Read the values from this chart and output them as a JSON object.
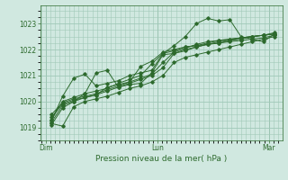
{
  "background_color": "#d0e8e0",
  "grid_color": "#a0c8b8",
  "line_color": "#2d6a2d",
  "title": "Pression niveau de la mer( hPa )",
  "xlabel_day_labels": [
    "Dim",
    "Lun",
    "Mar"
  ],
  "xlabel_day_positions": [
    0.0,
    1.0,
    2.0
  ],
  "ylim": [
    1018.5,
    1023.7
  ],
  "yticks": [
    1019,
    1020,
    1021,
    1022,
    1023
  ],
  "xlim": [
    -0.05,
    2.12
  ],
  "series": [
    [
      0.05,
      1019.15,
      0.15,
      1019.05,
      0.25,
      1019.8,
      0.35,
      1020.0,
      0.45,
      1020.1,
      0.55,
      1020.2,
      0.65,
      1020.35,
      0.75,
      1020.5,
      0.85,
      1020.6,
      0.95,
      1020.75,
      1.05,
      1021.0,
      1.15,
      1021.5,
      1.25,
      1021.7,
      1.35,
      1021.8,
      1.45,
      1021.9,
      1.55,
      1022.0,
      1.65,
      1022.1,
      1.75,
      1022.2,
      1.85,
      1022.3,
      1.95,
      1022.4,
      2.05,
      1022.5
    ],
    [
      0.05,
      1019.4,
      0.15,
      1019.9,
      0.25,
      1020.05,
      0.35,
      1020.15,
      0.45,
      1020.25,
      0.55,
      1020.4,
      0.65,
      1020.55,
      0.75,
      1020.7,
      0.85,
      1020.85,
      0.95,
      1021.0,
      1.05,
      1021.3,
      1.15,
      1021.85,
      1.25,
      1022.0,
      1.35,
      1022.1,
      1.45,
      1022.2,
      1.55,
      1022.25,
      1.65,
      1022.3,
      1.75,
      1022.35,
      1.85,
      1022.4,
      1.95,
      1022.45,
      2.05,
      1022.55
    ],
    [
      0.05,
      1019.5,
      0.15,
      1019.95,
      0.25,
      1020.1,
      0.35,
      1020.2,
      0.45,
      1020.3,
      0.55,
      1020.45,
      0.65,
      1020.6,
      0.75,
      1020.75,
      0.85,
      1020.9,
      0.95,
      1021.05,
      1.05,
      1021.5,
      1.15,
      1021.9,
      1.25,
      1022.05,
      1.35,
      1022.2,
      1.45,
      1022.3,
      1.55,
      1022.35,
      1.65,
      1022.4,
      1.75,
      1022.45,
      1.85,
      1022.5,
      1.95,
      1022.55,
      2.05,
      1022.6
    ],
    [
      0.05,
      1019.3,
      0.15,
      1020.0,
      0.25,
      1020.15,
      0.35,
      1020.3,
      0.45,
      1021.1,
      0.55,
      1021.2,
      0.65,
      1020.55,
      0.75,
      1020.65,
      0.85,
      1020.7,
      0.95,
      1021.1,
      1.05,
      1021.8,
      1.15,
      1021.85,
      1.25,
      1021.95,
      1.35,
      1022.1,
      1.45,
      1022.2,
      1.55,
      1022.25,
      1.65,
      1022.35,
      1.75,
      1022.45,
      1.85,
      1022.5,
      1.95,
      1022.55,
      2.05,
      1022.6
    ],
    [
      0.05,
      1019.25,
      0.15,
      1020.2,
      0.25,
      1020.9,
      0.35,
      1021.05,
      0.45,
      1020.6,
      0.55,
      1020.7,
      0.65,
      1020.8,
      0.75,
      1021.0,
      0.85,
      1021.1,
      0.95,
      1021.2,
      1.05,
      1021.85,
      1.15,
      1021.95,
      1.25,
      1022.1,
      1.35,
      1022.15,
      1.45,
      1022.2,
      1.55,
      1022.3,
      1.65,
      1022.35,
      1.75,
      1022.4,
      1.85,
      1022.5,
      1.95,
      1022.55,
      2.05,
      1022.6
    ],
    [
      0.05,
      1019.2,
      0.15,
      1019.85,
      0.25,
      1020.0,
      0.35,
      1020.15,
      0.45,
      1020.25,
      0.55,
      1020.55,
      0.65,
      1020.65,
      0.75,
      1020.75,
      0.85,
      1021.35,
      0.95,
      1021.55,
      1.05,
      1021.9,
      1.15,
      1022.0,
      1.25,
      1022.1,
      1.35,
      1022.15,
      1.45,
      1022.25,
      1.55,
      1022.35,
      1.65,
      1022.4,
      1.75,
      1022.45,
      1.85,
      1022.5,
      1.95,
      1022.55,
      2.05,
      1022.65
    ],
    [
      0.05,
      1019.1,
      0.15,
      1019.75,
      0.25,
      1020.0,
      0.35,
      1020.3,
      0.45,
      1020.4,
      0.55,
      1020.5,
      0.65,
      1020.7,
      0.75,
      1020.85,
      0.85,
      1021.0,
      0.95,
      1021.45,
      1.05,
      1021.85,
      1.15,
      1022.15,
      1.25,
      1022.5,
      1.35,
      1023.0,
      1.45,
      1023.2,
      1.55,
      1023.1,
      1.65,
      1023.15,
      1.75,
      1022.5,
      1.85,
      1022.4,
      1.95,
      1022.3,
      2.05,
      1022.6
    ]
  ]
}
